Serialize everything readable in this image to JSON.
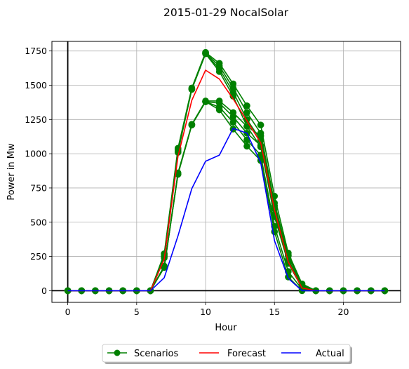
{
  "chart_data": {
    "type": "line",
    "title": "2015-01-29 NocalSolar",
    "xlabel": "Hour",
    "ylabel": "Power in Mw",
    "xlim": [
      -1.15,
      24.15
    ],
    "ylim": [
      -85,
      1820
    ],
    "xticks": [
      0,
      5,
      10,
      15,
      20
    ],
    "yticks": [
      0,
      250,
      500,
      750,
      1000,
      1250,
      1500,
      1750
    ],
    "grid": true,
    "legend_position": "bottom-center",
    "x": [
      0,
      1,
      2,
      3,
      4,
      5,
      6,
      7,
      8,
      9,
      10,
      11,
      12,
      13,
      14,
      15,
      16,
      17,
      18,
      19,
      20,
      21,
      22,
      23
    ],
    "scenarios": {
      "name": "Scenarios",
      "color": "#008000",
      "series": [
        [
          0,
          0,
          0,
          0,
          0,
          0,
          0,
          270,
          1040,
          1480,
          1740,
          1660,
          1510,
          1350,
          1210,
          690,
          275,
          50,
          0,
          0,
          0,
          0,
          0,
          0
        ],
        [
          0,
          0,
          0,
          0,
          0,
          0,
          0,
          260,
          1030,
          1475,
          1735,
          1640,
          1480,
          1300,
          1150,
          640,
          255,
          40,
          0,
          0,
          0,
          0,
          0,
          0
        ],
        [
          0,
          0,
          0,
          0,
          0,
          0,
          0,
          250,
          1020,
          1470,
          1730,
          1620,
          1450,
          1250,
          1100,
          600,
          230,
          30,
          0,
          0,
          0,
          0,
          0,
          0
        ],
        [
          0,
          0,
          0,
          0,
          0,
          0,
          0,
          240,
          1010,
          1470,
          1730,
          1600,
          1420,
          1200,
          1050,
          560,
          210,
          20,
          0,
          0,
          0,
          0,
          0,
          0
        ],
        [
          0,
          0,
          0,
          0,
          0,
          0,
          0,
          180,
          860,
          1215,
          1385,
          1385,
          1300,
          1200,
          1130,
          620,
          260,
          30,
          0,
          0,
          0,
          0,
          0,
          0
        ],
        [
          0,
          0,
          0,
          0,
          0,
          0,
          0,
          175,
          855,
          1210,
          1380,
          1370,
          1270,
          1150,
          1060,
          540,
          200,
          20,
          0,
          0,
          0,
          0,
          0,
          0
        ],
        [
          0,
          0,
          0,
          0,
          0,
          0,
          0,
          170,
          850,
          1210,
          1380,
          1340,
          1230,
          1100,
          990,
          470,
          140,
          10,
          0,
          0,
          0,
          0,
          0,
          0
        ],
        [
          0,
          0,
          0,
          0,
          0,
          0,
          0,
          170,
          850,
          1210,
          1380,
          1320,
          1180,
          1055,
          950,
          430,
          100,
          0,
          0,
          0,
          0,
          0,
          0,
          0
        ]
      ]
    },
    "forecast": {
      "name": "Forecast",
      "color": "#ff0000",
      "values": [
        0,
        0,
        0,
        0,
        0,
        0,
        0,
        230,
        980,
        1390,
        1610,
        1545,
        1400,
        1240,
        1080,
        590,
        210,
        20,
        0,
        0,
        0,
        0,
        0,
        0
      ]
    },
    "actual": {
      "name": "Actual",
      "color": "#0000ff",
      "values": [
        0,
        0,
        0,
        0,
        0,
        0,
        0,
        95,
        400,
        745,
        945,
        990,
        1185,
        1150,
        935,
        365,
        90,
        0,
        0,
        0,
        0,
        0,
        0,
        0
      ]
    }
  }
}
